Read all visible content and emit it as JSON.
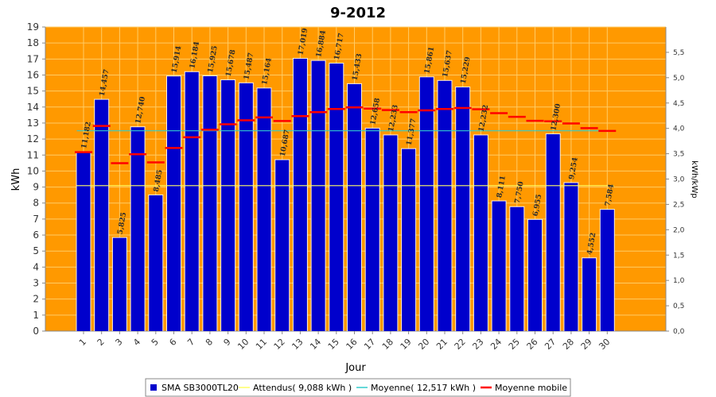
{
  "chart_data": {
    "type": "bar",
    "title": "9-2012",
    "xlabel": "Jour",
    "ylabel": "kWh",
    "y2label": "kWh/kWp",
    "ylim": [
      0,
      19
    ],
    "y2lim": [
      0,
      6
    ],
    "y_ticks": [
      0,
      1,
      2,
      3,
      4,
      5,
      6,
      7,
      8,
      9,
      10,
      11,
      12,
      13,
      14,
      15,
      16,
      17,
      18,
      19
    ],
    "y2_ticks": [
      "0,0",
      "0,5",
      "1,0",
      "1,5",
      "2,0",
      "2,5",
      "3,0",
      "3,5",
      "4,0",
      "4,5",
      "5,0",
      "5,5"
    ],
    "y2_tick_values": [
      0,
      0.5,
      1.0,
      1.5,
      2.0,
      2.5,
      3.0,
      3.5,
      4.0,
      4.5,
      5.0,
      5.5
    ],
    "categories": [
      "1",
      "2",
      "3",
      "4",
      "5",
      "6",
      "7",
      "8",
      "9",
      "10",
      "11",
      "12",
      "13",
      "14",
      "15",
      "16",
      "17",
      "18",
      "19",
      "20",
      "21",
      "22",
      "23",
      "24",
      "25",
      "26",
      "27",
      "28",
      "29",
      "30"
    ],
    "series": [
      {
        "name": "SMA SB3000TL20",
        "type": "bar",
        "color": "#0000cc",
        "values": [
          11.182,
          14.457,
          5.825,
          12.74,
          8.485,
          15.914,
          16.184,
          15.925,
          15.678,
          15.487,
          15.164,
          10.687,
          17.019,
          16.884,
          16.717,
          15.433,
          12.658,
          12.233,
          11.377,
          15.861,
          15.637,
          15.229,
          12.232,
          8.111,
          7.75,
          6.955,
          12.3,
          9.254,
          4.552,
          7.584
        ],
        "labels": [
          "11,182",
          "14,457",
          "5,825",
          "12,740",
          "8,485",
          "15,914",
          "16,184",
          "15,925",
          "15,678",
          "15,487",
          "15,164",
          "10,687",
          "17,019",
          "16,884",
          "16,717",
          "15,433",
          "12,658",
          "12,233",
          "11,377",
          "15,861",
          "15,637",
          "15,229",
          "12,232",
          "8,111",
          "7,750",
          "6,955",
          "12,300",
          "9,254",
          "4,552",
          "7,584"
        ]
      },
      {
        "name": "Attendus( 9,088 kWh )",
        "type": "line",
        "color": "#ffff66",
        "value": 9.088
      },
      {
        "name": "Moyenne( 12,517 kWh )",
        "type": "line",
        "color": "#33cccc",
        "value": 12.517
      },
      {
        "name": "Moyenne mobile",
        "type": "step",
        "color": "#ff0000",
        "values": [
          11.182,
          12.82,
          10.49,
          11.05,
          10.54,
          11.44,
          12.11,
          12.58,
          12.92,
          13.17,
          13.35,
          13.13,
          13.43,
          13.68,
          13.88,
          13.98,
          13.9,
          13.81,
          13.68,
          13.79,
          13.88,
          13.94,
          13.86,
          13.62,
          13.39,
          13.14,
          13.11,
          12.97,
          12.68,
          12.51
        ]
      }
    ],
    "legend_position": "bottom",
    "grid": true,
    "colors": {
      "plot_bg": "#ff9900",
      "grid": "#ffcc66",
      "bar": "#0000cc"
    }
  }
}
